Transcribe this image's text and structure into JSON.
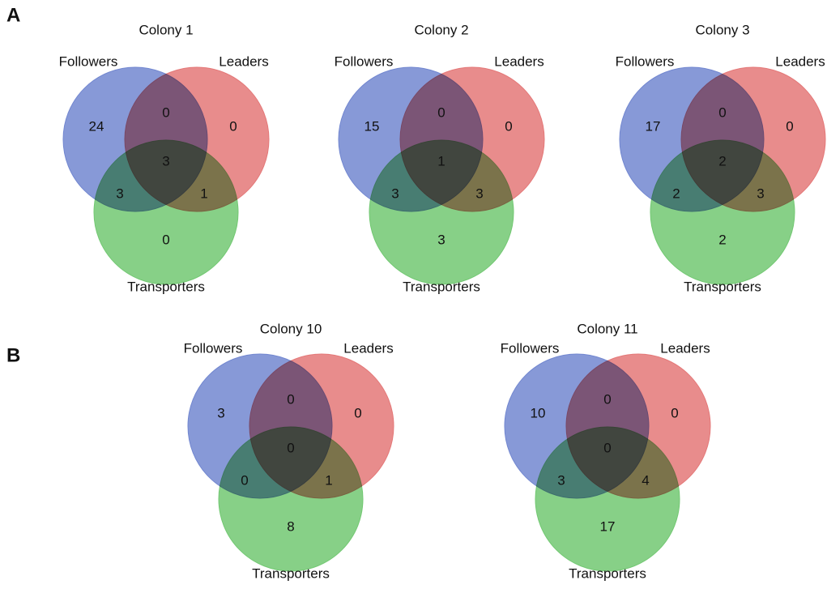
{
  "panels": [
    {
      "label": "A"
    },
    {
      "label": "B"
    }
  ],
  "chart_data": [
    {
      "type": "venn",
      "title": "Colony 1",
      "sets": [
        "Followers",
        "Leaders",
        "Transporters"
      ],
      "colors": [
        "#7287d0",
        "#e47878",
        "#72c872"
      ],
      "values": [
        24,
        0,
        0,
        0,
        3,
        1,
        3
      ]
    },
    {
      "type": "venn",
      "title": "Colony 2",
      "sets": [
        "Followers",
        "Leaders",
        "Transporters"
      ],
      "colors": [
        "#7287d0",
        "#e47878",
        "#72c872"
      ],
      "values": [
        15,
        0,
        3,
        0,
        3,
        3,
        1
      ]
    },
    {
      "type": "venn",
      "title": "Colony 3",
      "sets": [
        "Followers",
        "Leaders",
        "Transporters"
      ],
      "colors": [
        "#7287d0",
        "#e47878",
        "#72c872"
      ],
      "values": [
        17,
        0,
        2,
        0,
        2,
        3,
        2
      ]
    },
    {
      "type": "venn",
      "title": "Colony 10",
      "sets": [
        "Followers",
        "Leaders",
        "Transporters"
      ],
      "colors": [
        "#7287d0",
        "#e47878",
        "#72c872"
      ],
      "values": [
        3,
        0,
        8,
        0,
        0,
        1,
        0
      ]
    },
    {
      "type": "venn",
      "title": "Colony 11",
      "sets": [
        "Followers",
        "Leaders",
        "Transporters"
      ],
      "colors": [
        "#7287d0",
        "#e47878",
        "#72c872"
      ],
      "values": [
        10,
        0,
        17,
        0,
        3,
        4,
        0
      ]
    }
  ]
}
